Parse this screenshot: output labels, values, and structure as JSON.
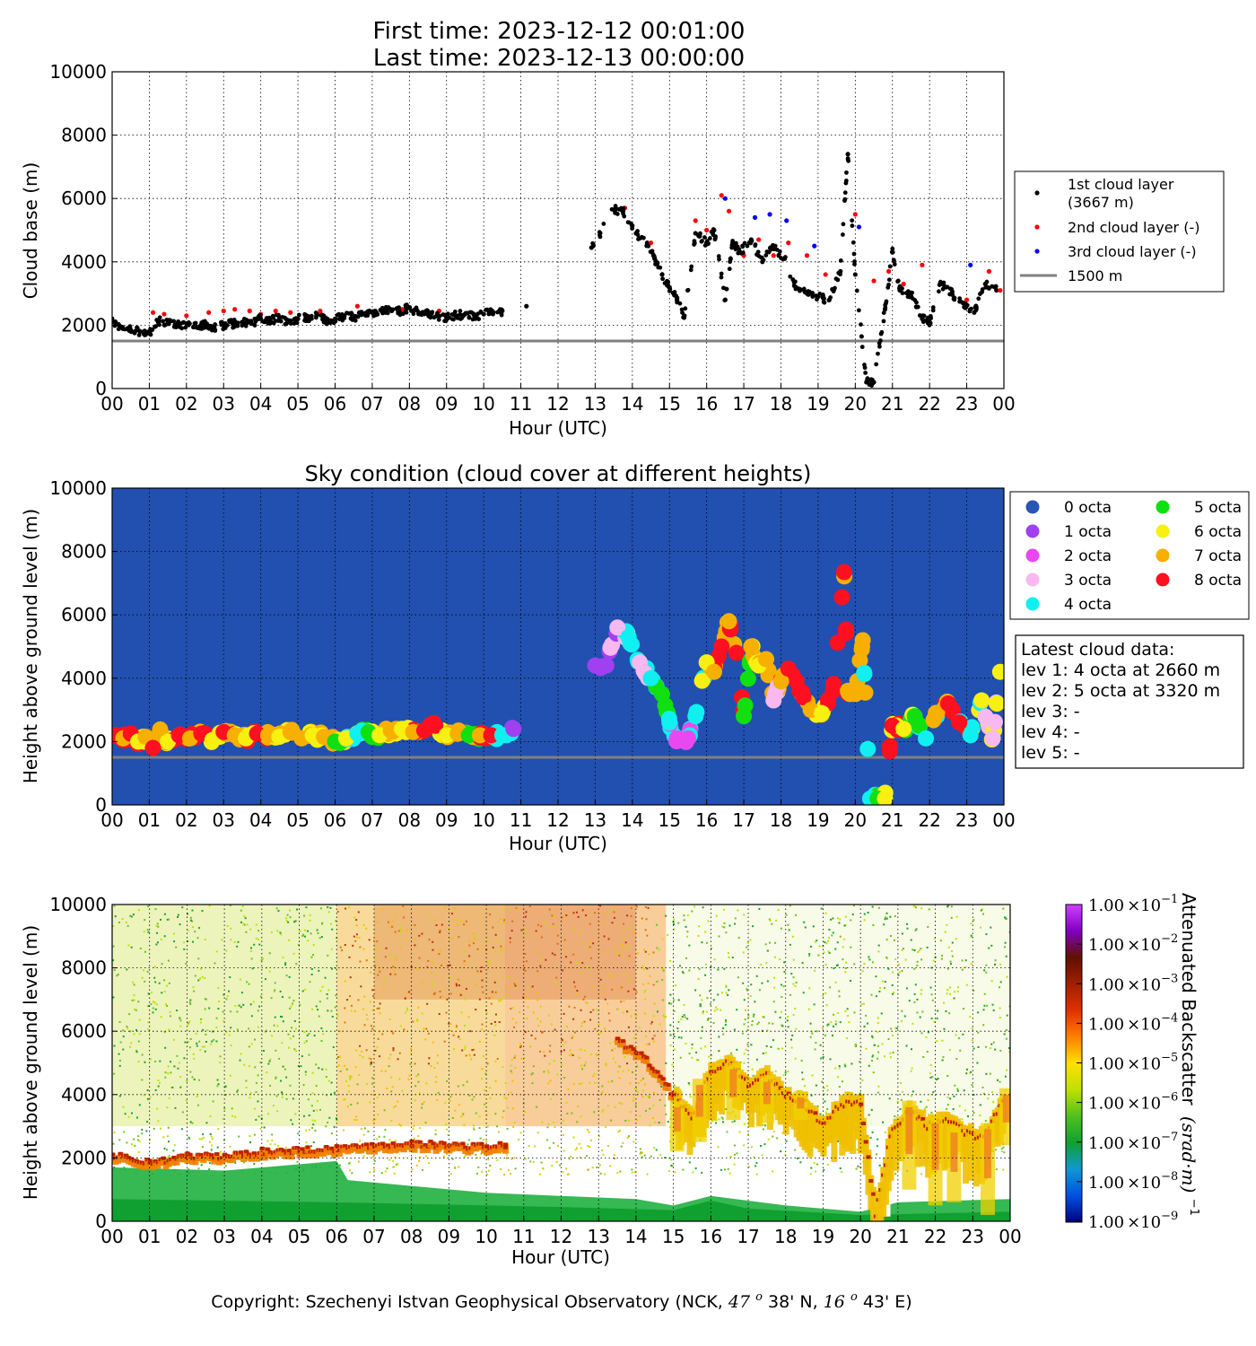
{
  "header": {
    "first_time": "First time: 2023-12-12 00:01:00",
    "last_time": "Last time: 2023-12-13 00:00:00"
  },
  "footer": {
    "copyright_prefix": "Copyright: Szechenyi Istvan Geophysical Observatory (NCK, ",
    "lat_deg": "47",
    "lat_deg_sup": "o",
    "lat_rest": " 38' N, ",
    "lon_deg": "16",
    "lon_deg_sup": "o",
    "lon_rest": " 43' E)"
  },
  "colors": {
    "first_layer": "#000000",
    "second_layer": "#ff0000",
    "third_layer": "#0000ff",
    "reference_line": "#808080",
    "sky_background": "#2250b0",
    "octa": [
      "#2a55b8",
      "#a040f0",
      "#e848f0",
      "#f8b8f0",
      "#10f0f0",
      "#10e010",
      "#f8f010",
      "#f8b000",
      "#ff1020"
    ]
  },
  "chart_data": [
    {
      "id": "cloud_base",
      "type": "scatter",
      "title": "",
      "xlabel": "Hour (UTC)",
      "ylabel": "Cloud base (m)",
      "xlim": [
        0,
        24
      ],
      "ylim": [
        0,
        10000
      ],
      "x_ticks": [
        "00",
        "01",
        "02",
        "03",
        "04",
        "05",
        "06",
        "07",
        "08",
        "09",
        "10",
        "11",
        "12",
        "13",
        "14",
        "15",
        "16",
        "17",
        "18",
        "19",
        "20",
        "21",
        "22",
        "23",
        "00"
      ],
      "y_ticks": [
        "0",
        "2000",
        "4000",
        "6000",
        "8000",
        "10000"
      ],
      "grid": true,
      "legend_position": "right",
      "legend": [
        {
          "label_line1": "1st cloud layer",
          "label_line2": "(3667 m)"
        },
        {
          "label_line1": "2nd cloud layer (-)"
        },
        {
          "label_line1": "3rd cloud layer (-)"
        },
        {
          "label_line1": "1500 m"
        }
      ],
      "reference_line_m": 1500,
      "series": [
        {
          "name": "1st cloud layer",
          "x": [
            0.0,
            0.25,
            0.5,
            0.75,
            1.0,
            1.25,
            1.5,
            1.75,
            2.0,
            2.25,
            2.5,
            2.75,
            3.0,
            3.25,
            3.5,
            3.75,
            4.0,
            4.25,
            4.5,
            4.75,
            5.0,
            5.25,
            5.5,
            5.75,
            6.0,
            6.25,
            6.5,
            6.75,
            7.0,
            7.25,
            7.5,
            7.75,
            8.0,
            8.25,
            8.5,
            8.75,
            9.0,
            9.25,
            9.5,
            9.75,
            10.0,
            10.25,
            10.5,
            11.15,
            12.9,
            13.5,
            13.75,
            14.1,
            14.4,
            14.6,
            14.8,
            15.0,
            15.2,
            15.4,
            15.7,
            16.0,
            16.2,
            16.5,
            16.7,
            16.9,
            17.2,
            17.5,
            17.8,
            18.1,
            18.4,
            18.7,
            19.0,
            19.3,
            19.6,
            19.8,
            20.0,
            20.3,
            20.5,
            20.8,
            21.0,
            21.2,
            21.5,
            21.8,
            22.0,
            22.3,
            22.6,
            22.9,
            23.2,
            23.5,
            23.8
          ],
          "y": [
            2100,
            1950,
            1850,
            1800,
            1750,
            2150,
            2050,
            2000,
            2050,
            1950,
            2000,
            1950,
            2000,
            2050,
            2100,
            2050,
            2200,
            2150,
            2250,
            2100,
            2200,
            2250,
            2300,
            2150,
            2200,
            2300,
            2250,
            2350,
            2400,
            2450,
            2500,
            2450,
            2550,
            2400,
            2350,
            2300,
            2250,
            2300,
            2350,
            2300,
            2350,
            2400,
            2450,
            2600,
            4450,
            5650,
            5600,
            4900,
            4600,
            4100,
            3600,
            3200,
            2800,
            2300,
            4900,
            4600,
            5000,
            2800,
            4600,
            4300,
            4700,
            4000,
            4500,
            4100,
            3200,
            3000,
            2900,
            2800,
            3700,
            7400,
            3600,
            200,
            200,
            2500,
            4300,
            3100,
            3000,
            2200,
            2100,
            3300,
            3000,
            2700,
            2400,
            3300,
            3100
          ]
        },
        {
          "name": "2nd cloud layer",
          "x": [
            1.1,
            1.4,
            2.0,
            2.6,
            3.0,
            3.3,
            3.7,
            4.0,
            4.4,
            4.8,
            5.2,
            5.6,
            6.6,
            7.8,
            8.8,
            13.8,
            14.5,
            15.7,
            16.0,
            16.4,
            16.6,
            17.0,
            17.4,
            17.8,
            18.2,
            18.7,
            19.2,
            20.0,
            20.5,
            20.9,
            21.3,
            21.8,
            22.4,
            23.0,
            23.6,
            23.9
          ],
          "y": [
            2400,
            2350,
            2300,
            2400,
            2450,
            2500,
            2450,
            2350,
            2450,
            2400,
            2300,
            2450,
            2600,
            2500,
            2450,
            5700,
            4600,
            5300,
            5000,
            6100,
            5600,
            4200,
            4700,
            4200,
            4600,
            4200,
            3600,
            5500,
            3400,
            3700,
            3300,
            3900,
            3200,
            2800,
            3700,
            3100
          ]
        },
        {
          "name": "3rd cloud layer",
          "x": [
            16.5,
            17.3,
            17.7,
            18.15,
            18.9,
            20.1,
            23.1
          ],
          "y": [
            6000,
            5400,
            5500,
            5300,
            4500,
            5100,
            3900
          ]
        }
      ]
    },
    {
      "id": "sky_condition",
      "type": "scatter",
      "title": "Sky condition (cloud cover at different heights)",
      "xlabel": "Hour (UTC)",
      "ylabel": "Height above ground level (m)",
      "xlim": [
        0,
        24
      ],
      "ylim": [
        0,
        10000
      ],
      "x_ticks": [
        "00",
        "01",
        "02",
        "03",
        "04",
        "05",
        "06",
        "07",
        "08",
        "09",
        "10",
        "11",
        "12",
        "13",
        "14",
        "15",
        "16",
        "17",
        "18",
        "19",
        "20",
        "21",
        "22",
        "23",
        "00"
      ],
      "y_ticks": [
        "0",
        "2000",
        "4000",
        "6000",
        "8000",
        "10000"
      ],
      "grid": true,
      "reference_line_m": 1500,
      "legend_position": "right",
      "legend": [
        "0 octa",
        "1 octa",
        "2 octa",
        "3 octa",
        "4 octa",
        "5 octa",
        "6 octa",
        "7 octa",
        "8 octa"
      ],
      "latest_info": [
        "Latest cloud data:",
        "lev 1: 4 octa at 2660 m",
        "lev 2: 5 octa at 3320 m",
        "lev 3: -",
        "lev 4: -",
        "lev 5: -"
      ],
      "points_x": [
        0.1,
        0.3,
        0.5,
        0.7,
        0.9,
        1.1,
        1.3,
        1.5,
        1.8,
        2.1,
        2.4,
        2.7,
        3.0,
        3.3,
        3.6,
        3.9,
        4.2,
        4.5,
        4.8,
        5.1,
        5.4,
        5.7,
        6.0,
        6.3,
        6.6,
        6.9,
        7.2,
        7.5,
        7.8,
        8.1,
        8.4,
        8.7,
        9.0,
        9.3,
        9.6,
        9.9,
        10.2,
        10.5,
        10.8,
        13.0,
        13.3,
        13.6,
        13.9,
        14.2,
        14.5,
        14.8,
        15.0,
        15.2,
        15.5,
        15.7,
        16.0,
        16.2,
        16.4,
        16.6,
        16.8,
        17.0,
        17.2,
        17.4,
        17.6,
        17.8,
        18.0,
        18.2,
        18.5,
        18.8,
        19.1,
        19.4,
        19.7,
        19.8,
        20.0,
        20.2,
        20.4,
        20.6,
        20.8,
        21.0,
        21.3,
        21.6,
        21.9,
        22.2,
        22.5,
        22.8,
        23.1,
        23.4,
        23.7,
        23.9
      ],
      "points_y": [
        2200,
        2100,
        2250,
        2000,
        2150,
        1800,
        2300,
        2000,
        2200,
        2100,
        2250,
        2050,
        2300,
        2200,
        2100,
        2250,
        2200,
        2150,
        2300,
        2100,
        2200,
        2150,
        2000,
        2100,
        2250,
        2300,
        2200,
        2350,
        2400,
        2300,
        2350,
        2500,
        2200,
        2250,
        2200,
        2200,
        2200,
        2200,
        2400,
        4400,
        4400,
        5600,
        5300,
        4500,
        4000,
        3500,
        2600,
        2100,
        2100,
        2800,
        4500,
        4200,
        5000,
        5800,
        4800,
        2800,
        5000,
        4400,
        4600,
        3300,
        3900,
        4300,
        3600,
        3000,
        2900,
        3600,
        7350,
        3600,
        3500,
        5200,
        200,
        200,
        200,
        2500,
        2400,
        2800,
        2100,
        2900,
        3200,
        2600,
        2200,
        3300,
        2100,
        4200
      ],
      "points_octa": [
        8,
        7,
        8,
        6,
        7,
        8,
        7,
        6,
        8,
        7,
        8,
        6,
        8,
        7,
        6,
        8,
        7,
        6,
        7,
        7,
        6,
        7,
        5,
        6,
        4,
        5,
        6,
        7,
        6,
        7,
        8,
        8,
        6,
        7,
        5,
        7,
        8,
        4,
        1,
        1,
        1,
        3,
        4,
        3,
        4,
        5,
        4,
        2,
        2,
        4,
        6,
        7,
        8,
        7,
        8,
        5,
        7,
        6,
        7,
        3,
        7,
        8,
        8,
        7,
        6,
        8,
        8,
        7,
        7,
        7,
        4,
        5,
        6,
        8,
        6,
        5,
        4,
        7,
        8,
        8,
        4,
        6,
        3,
        6
      ]
    },
    {
      "id": "backscatter",
      "type": "heatmap",
      "title": "",
      "xlabel": "Hour (UTC)",
      "ylabel": "Height above ground level (m)",
      "xlim": [
        0,
        24
      ],
      "ylim": [
        0,
        10000
      ],
      "x_ticks": [
        "00",
        "01",
        "02",
        "03",
        "04",
        "05",
        "06",
        "07",
        "08",
        "09",
        "10",
        "11",
        "12",
        "13",
        "14",
        "15",
        "16",
        "17",
        "18",
        "19",
        "20",
        "21",
        "22",
        "23",
        "00"
      ],
      "y_ticks": [
        "0",
        "2000",
        "4000",
        "6000",
        "8000",
        "10000"
      ],
      "colorbar_label": "Attenuated Backscatter",
      "colorbar_unit": "(srad·m)",
      "colorbar_unit_exp": "−1",
      "colorbar_ticks": [
        "1.00",
        "1.00",
        "1.00",
        "1.00",
        "1.00",
        "1.00",
        "1.00",
        "1.00",
        "1.00"
      ],
      "colorbar_exponents": [
        "−9",
        "−8",
        "−7",
        "−6",
        "−5",
        "−4",
        "−3",
        "−2",
        "−1"
      ],
      "colorbar_colors": [
        "#000080",
        "#0050e0",
        "#1098d0",
        "#10a030",
        "#50c020",
        "#c0e000",
        "#ffe000",
        "#ff8000",
        "#e03000",
        "#a02000",
        "#601000",
        "#8000c0",
        "#d040ff"
      ],
      "cloud_trace_x": [
        0.0,
        1.0,
        2.0,
        3.0,
        4.0,
        5.0,
        6.0,
        7.0,
        8.0,
        9.0,
        10.0,
        10.5,
        13.5,
        14.2,
        15.0,
        15.5,
        16.0,
        16.5,
        17.0,
        17.5,
        18.0,
        18.5,
        19.0,
        19.5,
        20.0,
        20.4,
        20.8,
        21.3,
        21.8,
        22.3,
        22.8,
        23.3,
        23.8
      ],
      "cloud_trace_y": [
        2100,
        1850,
        2050,
        2050,
        2200,
        2250,
        2300,
        2400,
        2450,
        2400,
        2350,
        2400,
        5700,
        5200,
        4000,
        3300,
        4700,
        5000,
        4300,
        4600,
        4000,
        3700,
        3100,
        3700,
        3700,
        200,
        2700,
        3500,
        3000,
        3200,
        2800,
        2600,
        3800
      ]
    }
  ]
}
